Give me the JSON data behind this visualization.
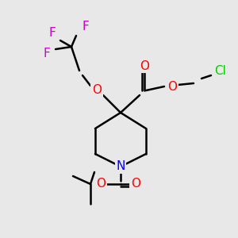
{
  "bg_color": "#e8e8e8",
  "bond_color": "#000000",
  "bond_width": 1.8,
  "atom_colors": {
    "F": "#cc00cc",
    "Cl": "#00cc00",
    "N": "#0000ff",
    "O": "#ff0000",
    "C": "#000000"
  },
  "font_size": 11,
  "font_size_small": 10
}
